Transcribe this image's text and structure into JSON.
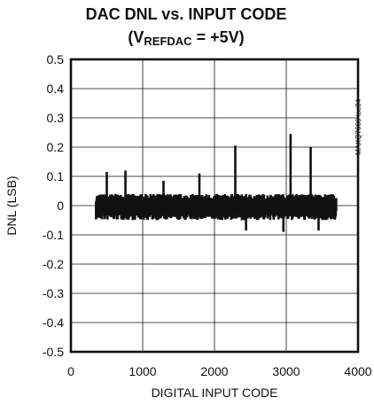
{
  "chart_data": {
    "type": "line",
    "title": "DAC DNL vs. INPUT CODE",
    "subtitle": {
      "prefix": "(V",
      "subscript": "REFDAC",
      "suffix": " = +5V)"
    },
    "xlabel": "DIGITAL INPUT CODE",
    "ylabel": "DNL (LSB)",
    "side_note": "MAXQ7666 toc04",
    "xlim": [
      0,
      4000
    ],
    "ylim": [
      -0.5,
      0.5
    ],
    "xticks": [
      0,
      1000,
      2000,
      3000,
      4000
    ],
    "yticks": [
      -0.5,
      -0.4,
      -0.3,
      -0.2,
      -0.1,
      0,
      0.1,
      0.2,
      0.3,
      0.4,
      0.5
    ],
    "ytick_labels": [
      "-0.5",
      "-0.4",
      "-0.3",
      "-0.2",
      "-0.1",
      "0",
      "0.1",
      "0.2",
      "0.3",
      "0.4",
      "0.5"
    ],
    "grid": true,
    "series": [
      {
        "code_range": [
          350,
          3700
        ],
        "baseline_range": [
          -0.05,
          0.04
        ],
        "spikes": [
          {
            "x": 500,
            "y": 0.115
          },
          {
            "x": 760,
            "y": 0.12
          },
          {
            "x": 1290,
            "y": 0.085
          },
          {
            "x": 1790,
            "y": 0.11
          },
          {
            "x": 2290,
            "y": 0.205
          },
          {
            "x": 3060,
            "y": 0.245
          },
          {
            "x": 3340,
            "y": 0.2
          },
          {
            "x": 2440,
            "y": -0.085
          },
          {
            "x": 2960,
            "y": -0.09
          },
          {
            "x": 3450,
            "y": -0.085
          }
        ]
      }
    ]
  }
}
